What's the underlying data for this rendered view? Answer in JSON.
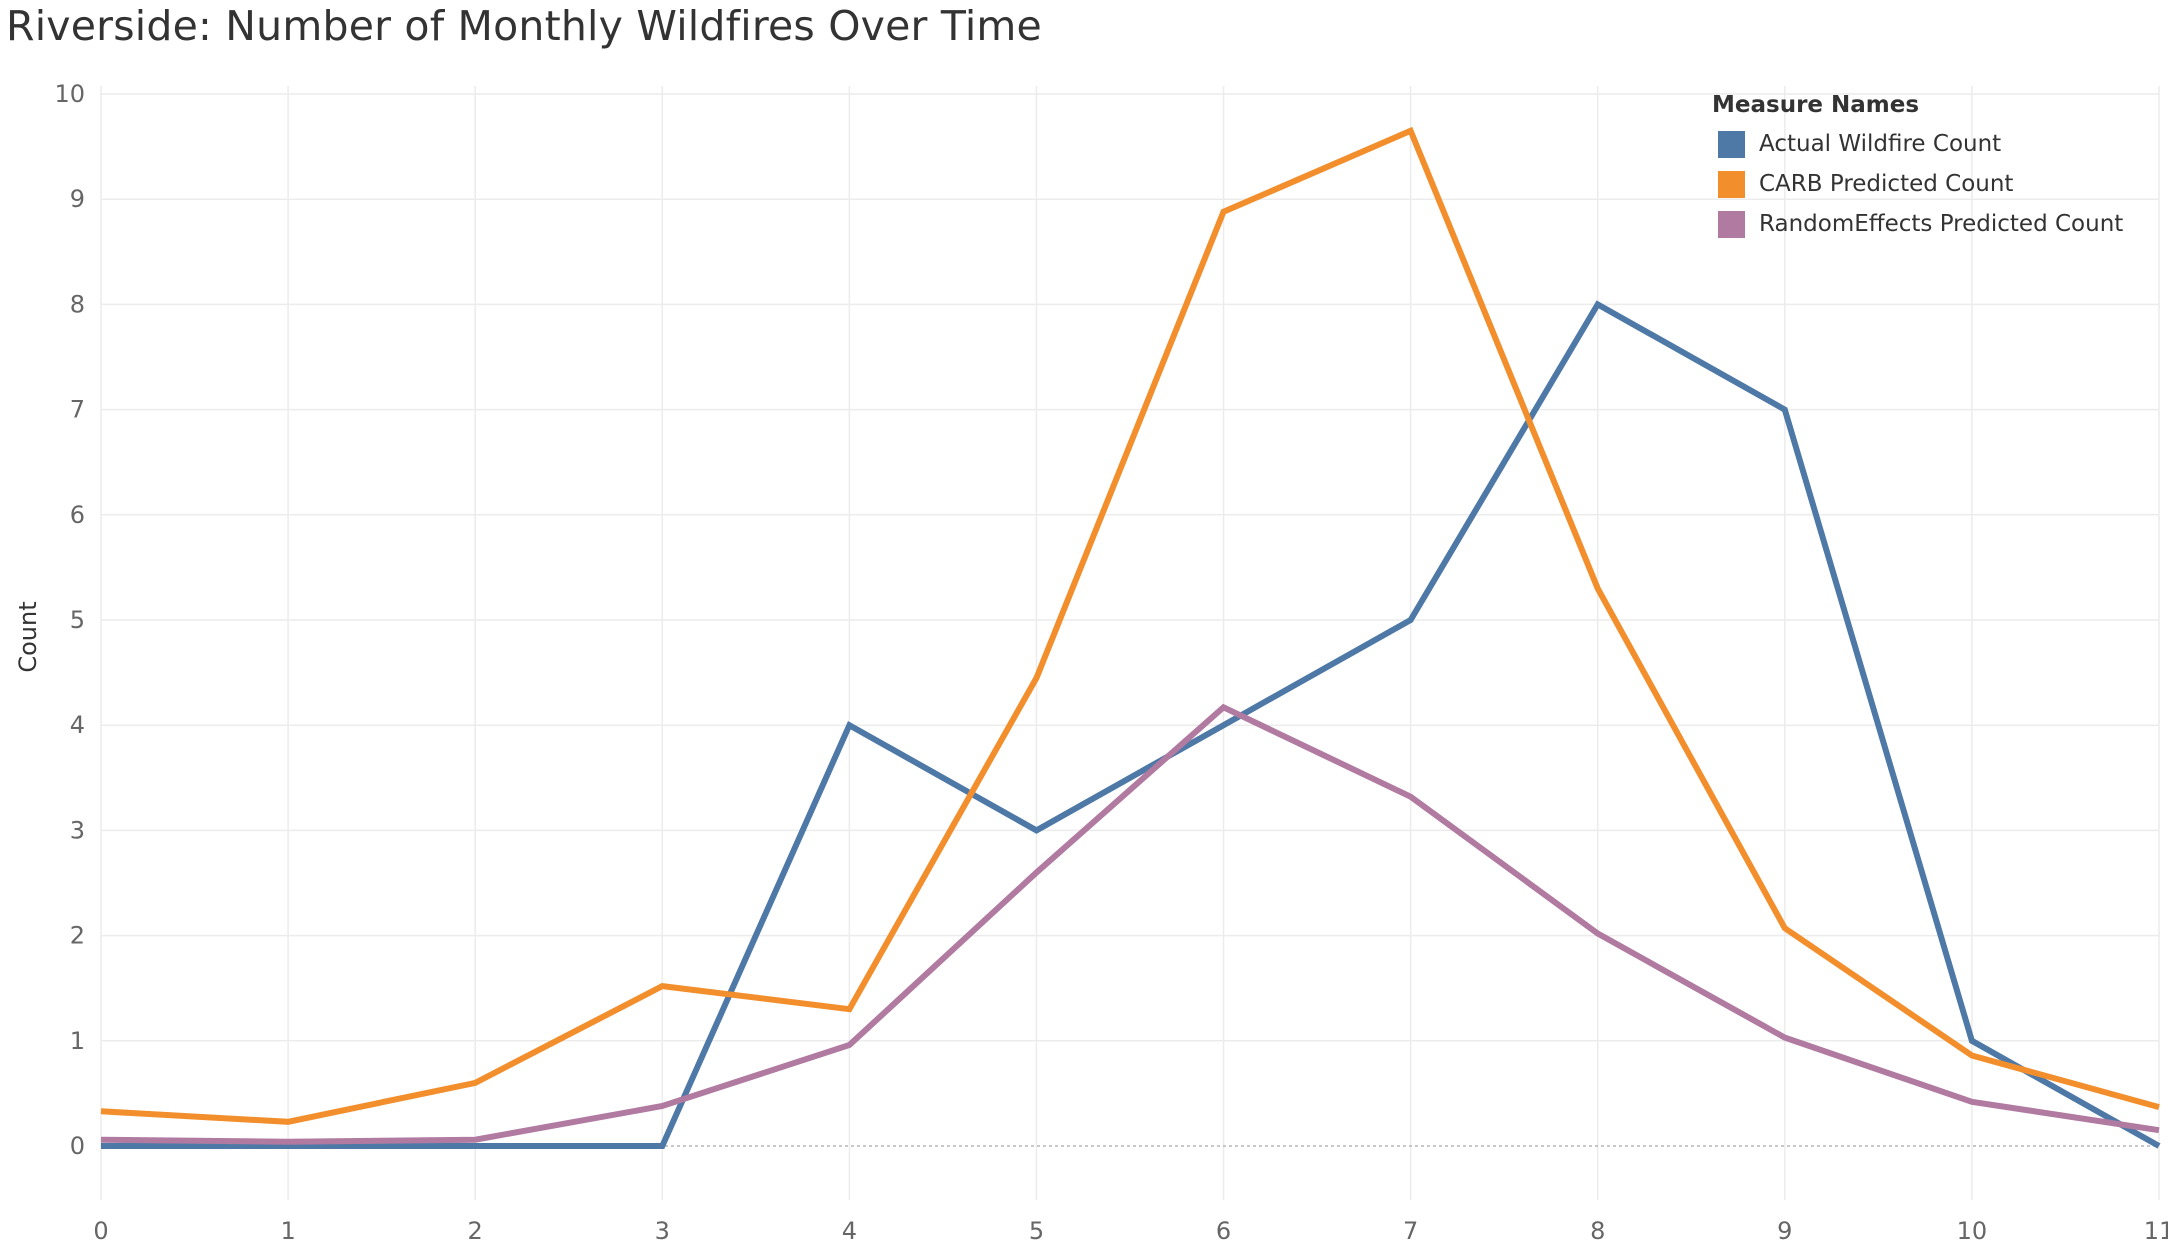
{
  "chart_data": {
    "type": "line",
    "title": "Riverside: Number of Monthly Wildfires Over Time",
    "xlabel": "",
    "ylabel": "Count",
    "x": [
      0,
      1,
      2,
      3,
      4,
      5,
      6,
      7,
      8,
      9,
      10,
      11
    ],
    "xlim": [
      0,
      11
    ],
    "ylim": [
      -0.5,
      10
    ],
    "xticks": [
      0,
      1,
      2,
      3,
      4,
      5,
      6,
      7,
      8,
      9,
      10,
      11
    ],
    "yticks": [
      0,
      1,
      2,
      3,
      4,
      5,
      6,
      7,
      8,
      9,
      10
    ],
    "grid": true,
    "zero_line": true,
    "legend": {
      "title": "Measure Names",
      "position": "top-right"
    },
    "series": [
      {
        "name": "Actual Wildfire Count",
        "color": "#4e79a7",
        "values": [
          0,
          0,
          0,
          0,
          4,
          3,
          4,
          5,
          8,
          7,
          1,
          0
        ]
      },
      {
        "name": "CARB Predicted Count",
        "color": "#f28e2b",
        "values": [
          0.33,
          0.23,
          0.6,
          1.52,
          1.3,
          4.45,
          8.88,
          9.65,
          5.3,
          2.07,
          0.86,
          0.37
        ]
      },
      {
        "name": "RandomEffects Predicted Count",
        "color": "#b07aa1",
        "values": [
          0.06,
          0.04,
          0.06,
          0.38,
          0.96,
          2.6,
          4.17,
          3.32,
          2.02,
          1.03,
          0.42,
          0.15
        ]
      }
    ]
  }
}
